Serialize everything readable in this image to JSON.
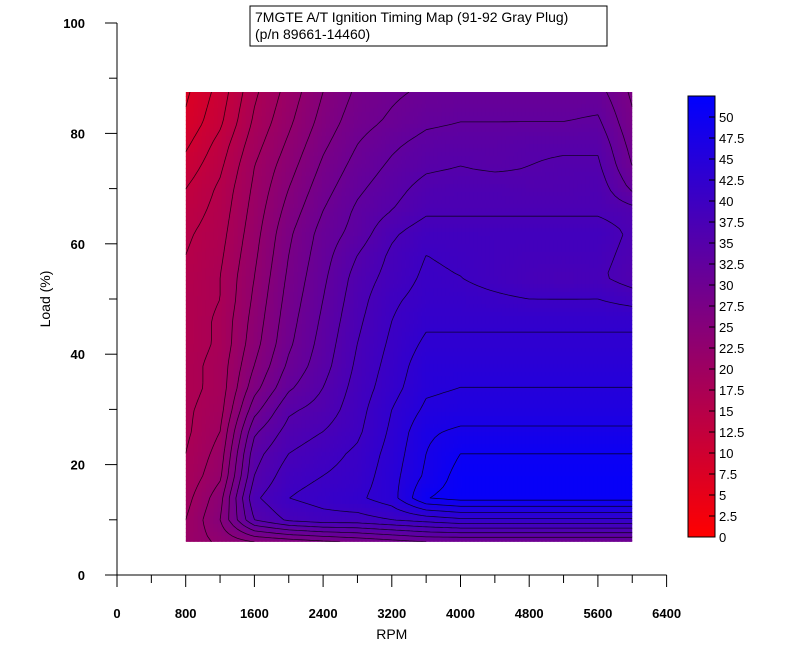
{
  "chart_data": {
    "type": "heatmap",
    "subtype": "filled-contour",
    "title_lines": [
      "7MGTE A/T Ignition Timing Map (91-92 Gray Plug)",
      "(p/n 89661-14460)"
    ],
    "xlabel": "RPM",
    "ylabel": "Load (%)",
    "xlim": [
      0,
      6400
    ],
    "ylim": [
      0,
      100
    ],
    "x_ticks": [
      0,
      800,
      1600,
      2400,
      3200,
      4000,
      4800,
      5600,
      6400
    ],
    "x_tick_labels": [
      "0",
      "800",
      "1600",
      "2400",
      "3200",
      "4000",
      "4800",
      "5600",
      "6400"
    ],
    "x_minor_step": 400,
    "y_ticks": [
      0,
      20,
      40,
      60,
      80,
      100
    ],
    "y_tick_labels": [
      "0",
      "20",
      "40",
      "60",
      "80",
      "100"
    ],
    "y_minor_step": 10,
    "data_extent": {
      "x": [
        800,
        6000
      ],
      "y": [
        6,
        87.5
      ]
    },
    "colormap": {
      "min_color": "#ff0000",
      "max_color": "#0000ff",
      "min": 0,
      "max": 52.5
    },
    "colorbar": {
      "min": 0,
      "max": 52.5,
      "ticks": [
        0,
        2.5,
        5,
        7.5,
        10,
        12.5,
        15,
        17.5,
        20,
        22.5,
        25,
        27.5,
        30,
        32.5,
        35,
        37.5,
        40,
        42.5,
        45,
        47.5,
        50
      ],
      "tick_labels": [
        "0",
        "2.5",
        "5",
        "7.5",
        "10",
        "12.5",
        "15",
        "17.5",
        "20",
        "22.5",
        "25",
        "27.5",
        "30",
        "32.5",
        "35",
        "37.5",
        "40",
        "42.5",
        "45",
        "47.5",
        "50"
      ],
      "placement": "right"
    },
    "contour_interval": 2.5,
    "rpm": [
      800,
      1200,
      1600,
      2000,
      2400,
      2800,
      3200,
      3600,
      4000,
      4400,
      4800,
      5200,
      5600,
      6000
    ],
    "load": [
      6,
      10,
      14,
      18,
      22,
      26,
      30,
      34,
      38,
      42,
      46,
      50,
      54,
      58,
      62,
      66,
      70,
      74,
      78,
      82,
      87.5
    ],
    "values": [
      [
        21,
        23,
        25,
        26,
        27,
        28,
        29,
        30,
        30,
        30,
        30,
        30,
        30,
        30
      ],
      [
        20,
        25,
        35,
        38,
        39,
        39,
        40,
        41,
        42,
        42,
        42,
        42,
        42,
        42
      ],
      [
        19,
        24,
        37,
        40,
        41,
        42,
        44,
        50,
        51,
        51,
        51,
        51,
        51,
        51
      ],
      [
        18,
        22,
        35,
        39,
        40,
        41,
        44,
        48,
        51,
        51,
        51,
        51,
        51,
        51
      ],
      [
        17.5,
        21,
        34,
        37.5,
        39,
        40.5,
        43.5,
        47.5,
        50,
        50,
        50,
        50,
        50,
        50
      ],
      [
        17,
        20,
        32,
        36,
        37.5,
        39.5,
        43,
        47,
        48,
        48,
        48,
        48,
        48,
        48
      ],
      [
        17,
        19,
        29,
        34.5,
        36,
        39,
        42.5,
        45.5,
        46,
        46,
        46,
        46,
        46,
        46
      ],
      [
        16.5,
        18.5,
        26.5,
        32,
        35,
        38.5,
        41.5,
        44.5,
        45,
        45,
        45,
        45,
        45,
        45
      ],
      [
        16.5,
        18.5,
        25,
        30.5,
        34,
        38,
        41,
        44,
        44,
        44,
        44,
        44,
        44,
        44
      ],
      [
        16,
        18,
        24,
        29.5,
        33.5,
        37.5,
        40.5,
        43,
        43,
        43,
        43,
        43,
        43,
        43
      ],
      [
        16,
        18,
        23.5,
        29,
        33,
        37,
        40,
        42,
        42,
        42,
        42,
        42,
        42,
        42
      ],
      [
        16,
        17.5,
        23,
        28.5,
        32.5,
        36.5,
        39.5,
        41,
        41,
        40.5,
        40,
        40,
        40,
        39
      ],
      [
        15.5,
        17.5,
        22.5,
        28,
        32,
        36,
        38.5,
        40.5,
        40,
        39,
        38,
        37.5,
        38,
        36
      ],
      [
        15,
        17,
        22,
        27.5,
        31.5,
        35,
        38,
        40,
        39.5,
        39,
        38.5,
        38.5,
        38.5,
        36.5
      ],
      [
        14.5,
        16.5,
        21.5,
        27,
        31,
        33.5,
        37,
        39,
        39,
        39,
        39,
        39,
        39,
        37
      ],
      [
        13.5,
        16,
        21,
        26,
        30,
        33,
        35,
        37,
        37,
        37,
        37,
        37,
        37,
        36
      ],
      [
        12.5,
        15.5,
        20.5,
        25,
        29,
        32,
        34,
        36,
        36.5,
        36.5,
        36,
        36,
        36.5,
        32
      ],
      [
        11,
        14.5,
        20,
        24,
        28,
        31,
        33,
        34.5,
        35,
        34.5,
        35,
        35.5,
        35.5,
        30
      ],
      [
        9.5,
        13.5,
        19,
        23,
        27,
        30,
        32,
        33.5,
        34,
        34,
        34.5,
        34.5,
        34.5,
        29
      ],
      [
        8,
        12,
        18,
        22,
        26,
        29,
        30.5,
        32,
        32.5,
        32.5,
        32.5,
        32.5,
        33,
        28
      ],
      [
        7,
        11,
        17,
        21,
        25,
        28,
        29.5,
        30.5,
        31,
        31,
        31,
        31,
        31,
        27
      ]
    ]
  }
}
